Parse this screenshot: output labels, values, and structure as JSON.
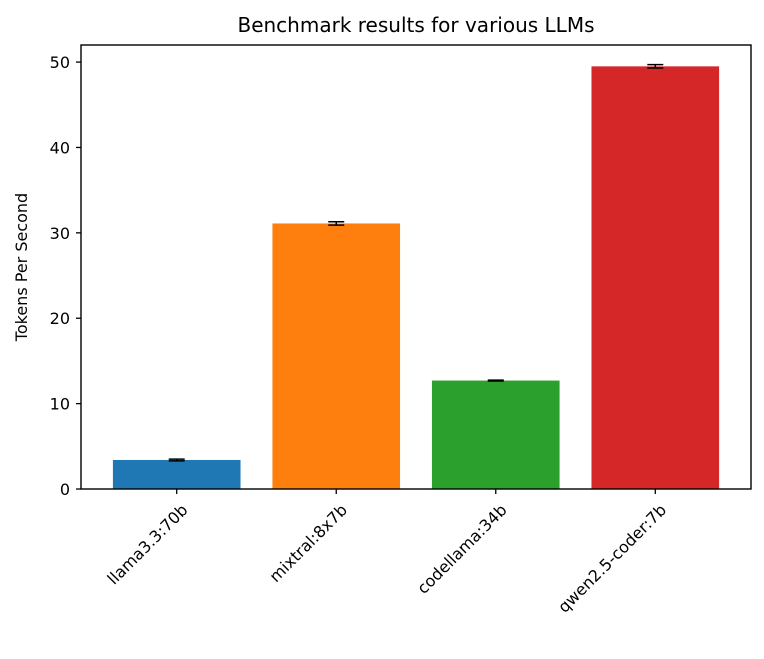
{
  "chart_data": {
    "type": "bar",
    "title": "Benchmark results for various LLMs",
    "xlabel": "",
    "ylabel": "Tokens Per Second",
    "ylim": [
      0,
      52
    ],
    "yticks": [
      0,
      10,
      20,
      30,
      40,
      50
    ],
    "categories": [
      "llama3.3:70b",
      "mixtral:8x7b",
      "codellama:34b",
      "qwen2.5-coder:7b"
    ],
    "values": [
      3.4,
      31.1,
      12.7,
      49.5
    ],
    "errors": [
      0.1,
      0.2,
      0.05,
      0.2
    ],
    "colors": [
      "#1f77b4",
      "#ff7f0e",
      "#2ca02c",
      "#d62728"
    ],
    "x_tick_rotation": 45,
    "grid": false,
    "legend": "none"
  }
}
